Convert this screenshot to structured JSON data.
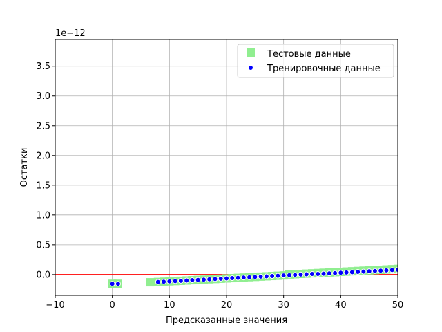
{
  "chart_data": {
    "type": "scatter",
    "title": "",
    "xlabel": "Предсказанные значения",
    "ylabel": "Остатки",
    "offset_text": "1e−12",
    "xlim": [
      -10,
      50
    ],
    "ylim": [
      -0.35,
      3.95
    ],
    "xticks": [
      -10,
      0,
      10,
      20,
      30,
      40,
      50
    ],
    "xtick_labels": [
      "−10",
      "0",
      "10",
      "20",
      "30",
      "40",
      "50"
    ],
    "yticks": [
      0.0,
      0.5,
      1.0,
      1.5,
      2.0,
      2.5,
      3.0,
      3.5
    ],
    "ytick_labels": [
      "0.0",
      "0.5",
      "1.0",
      "1.5",
      "2.0",
      "2.5",
      "3.0",
      "3.5"
    ],
    "grid": true,
    "legend_position": "upper right",
    "hline": {
      "y": 0,
      "color": "#ff0000"
    },
    "colors": {
      "test": "#90ee90",
      "train": "#0000ff",
      "train_edge": "#ffffff"
    },
    "series": [
      {
        "name": "Тестовые данные",
        "marker": "square",
        "points": [
          [
            0,
            -0.155
          ],
          [
            1,
            -0.155
          ],
          [
            6.6,
            -0.13
          ],
          [
            8,
            -0.125
          ],
          [
            9,
            -0.12
          ],
          [
            10,
            -0.115
          ],
          [
            11,
            -0.11
          ],
          [
            12,
            -0.105
          ],
          [
            13,
            -0.1
          ],
          [
            14,
            -0.095
          ],
          [
            15,
            -0.09
          ],
          [
            16,
            -0.085
          ],
          [
            17,
            -0.08
          ],
          [
            18,
            -0.075
          ],
          [
            19,
            -0.07
          ],
          [
            20,
            -0.065
          ],
          [
            21,
            -0.06
          ],
          [
            22,
            -0.055
          ],
          [
            23,
            -0.05
          ],
          [
            24,
            -0.045
          ],
          [
            25,
            -0.04
          ],
          [
            26,
            -0.035
          ],
          [
            27,
            -0.03
          ],
          [
            28,
            -0.025
          ],
          [
            29,
            -0.02
          ],
          [
            30,
            -0.015
          ],
          [
            31,
            0.0
          ],
          [
            32,
            0.005
          ],
          [
            33,
            0.01
          ],
          [
            34,
            0.015
          ],
          [
            35,
            0.02
          ],
          [
            36,
            0.025
          ],
          [
            37,
            0.03
          ],
          [
            38,
            0.035
          ],
          [
            39,
            0.04
          ],
          [
            40,
            0.045
          ],
          [
            41,
            0.05
          ],
          [
            42,
            0.055
          ],
          [
            43,
            0.06
          ],
          [
            44,
            0.065
          ],
          [
            45,
            0.07
          ],
          [
            46,
            0.075
          ],
          [
            47,
            0.08
          ],
          [
            48,
            0.085
          ],
          [
            49,
            0.09
          ],
          [
            50,
            0.095
          ]
        ]
      },
      {
        "name": "Тренировочные данные",
        "marker": "circle",
        "points": [
          [
            0,
            -0.155
          ],
          [
            1,
            -0.155
          ],
          [
            8,
            -0.125
          ],
          [
            9,
            -0.12
          ],
          [
            10,
            -0.115
          ],
          [
            11,
            -0.11
          ],
          [
            12,
            -0.105
          ],
          [
            13,
            -0.1
          ],
          [
            14,
            -0.095
          ],
          [
            15,
            -0.09
          ],
          [
            16,
            -0.085
          ],
          [
            17,
            -0.08
          ],
          [
            18,
            -0.075
          ],
          [
            19,
            -0.07
          ],
          [
            20,
            -0.065
          ],
          [
            21,
            -0.06
          ],
          [
            22,
            -0.055
          ],
          [
            23,
            -0.05
          ],
          [
            24,
            -0.045
          ],
          [
            25,
            -0.04
          ],
          [
            26,
            -0.035
          ],
          [
            27,
            -0.03
          ],
          [
            28,
            -0.025
          ],
          [
            29,
            -0.02
          ],
          [
            30,
            -0.015
          ],
          [
            31,
            -0.01
          ],
          [
            32,
            -0.005
          ],
          [
            33,
            0.0
          ],
          [
            34,
            0.005
          ],
          [
            35,
            0.01
          ],
          [
            36,
            0.01
          ],
          [
            37,
            0.015
          ],
          [
            38,
            0.02
          ],
          [
            39,
            0.025
          ],
          [
            40,
            0.03
          ],
          [
            41,
            0.035
          ],
          [
            42,
            0.04
          ],
          [
            43,
            0.045
          ],
          [
            44,
            0.05
          ],
          [
            45,
            0.055
          ],
          [
            46,
            0.06
          ],
          [
            47,
            0.065
          ],
          [
            48,
            0.07
          ],
          [
            49,
            0.075
          ],
          [
            50,
            0.08
          ]
        ]
      }
    ]
  }
}
